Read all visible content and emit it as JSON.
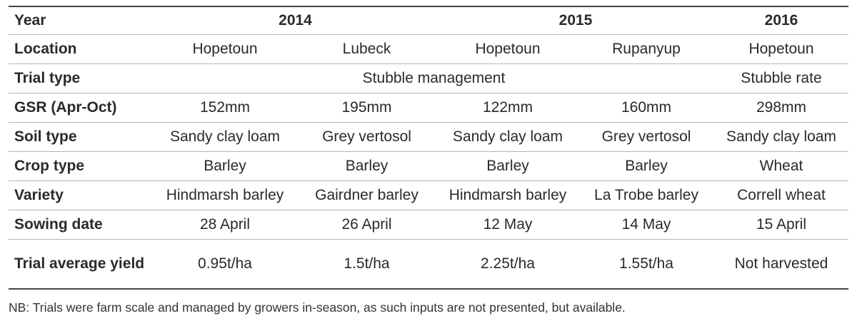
{
  "table": {
    "header": [
      "Year",
      "2014",
      "2015",
      "2016"
    ],
    "rows": [
      {
        "label": "Location",
        "cells": [
          "Hopetoun",
          "Lubeck",
          "Hopetoun",
          "Rupanyup",
          "Hopetoun"
        ]
      },
      {
        "label": "Trial type",
        "cells": [
          "Stubble management",
          "Stubble rate"
        ]
      },
      {
        "label": "GSR (Apr-Oct)",
        "cells": [
          "152mm",
          "195mm",
          "122mm",
          "160mm",
          "298mm"
        ]
      },
      {
        "label": "Soil type",
        "cells": [
          "Sandy clay loam",
          "Grey vertosol",
          "Sandy clay loam",
          "Grey vertosol",
          "Sandy clay loam"
        ]
      },
      {
        "label": "Crop type",
        "cells": [
          "Barley",
          "Barley",
          "Barley",
          "Barley",
          "Wheat"
        ]
      },
      {
        "label": "Variety",
        "cells": [
          "Hindmarsh barley",
          "Gairdner barley",
          "Hindmarsh barley",
          "La Trobe barley",
          "Correll wheat"
        ]
      },
      {
        "label": "Sowing date",
        "cells": [
          "28 April",
          "26 April",
          "12 May",
          "14 May",
          "15 April"
        ]
      },
      {
        "label": "Trial average yield",
        "cells": [
          "0.95t/ha",
          "1.5t/ha",
          "2.25t/ha",
          "1.55t/ha",
          "Not harvested"
        ]
      }
    ]
  },
  "note": "NB: Trials were farm scale and managed by growers in-season, as such inputs are not presented, but available."
}
